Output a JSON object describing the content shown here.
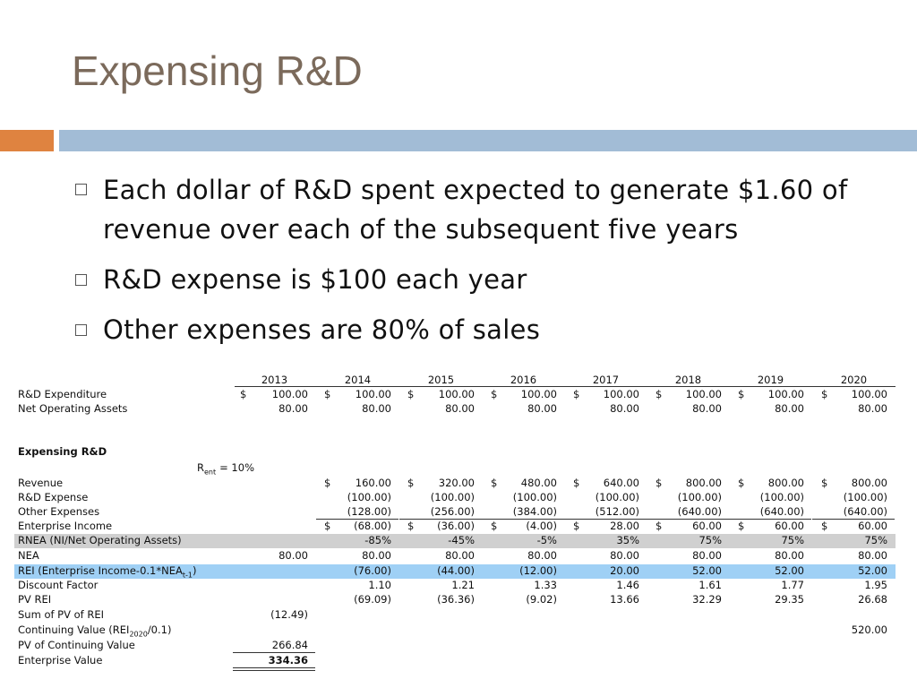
{
  "title": "Expensing R&D",
  "bullets": [
    "Each dollar of R&D spent expected to generate $1.60 of revenue over each of the subsequent five years",
    "R&D expense is $100 each year",
    "Other expenses are 80% of sales"
  ],
  "table": {
    "years": [
      "2013",
      "2014",
      "2015",
      "2016",
      "2017",
      "2018",
      "2019",
      "2020"
    ],
    "rent_note": {
      "text": "R",
      "sub": "ent",
      "after": "= 10%"
    },
    "rows": [
      {
        "label": "R&D Expenditure",
        "currency": [
          "$",
          "$",
          "$",
          "$",
          "$",
          "$",
          "$",
          "$"
        ],
        "cells": [
          "100.00",
          "100.00",
          "100.00",
          "100.00",
          "100.00",
          "100.00",
          "100.00",
          "100.00"
        ]
      },
      {
        "label": "Net Operating Assets",
        "cells": [
          "80.00",
          "80.00",
          "80.00",
          "80.00",
          "80.00",
          "80.00",
          "80.00",
          "80.00"
        ]
      },
      {
        "label": "Expensing R&D",
        "style": "bold"
      },
      {
        "label": "Revenue",
        "currency": [
          null,
          "$",
          "$",
          "$",
          "$",
          "$",
          "$",
          "$"
        ],
        "cells": [
          null,
          "160.00",
          "320.00",
          "480.00",
          "640.00",
          "800.00",
          "800.00",
          "800.00"
        ]
      },
      {
        "label": "R&D Expense",
        "cells": [
          null,
          "(100.00)",
          "(100.00)",
          "(100.00)",
          "(100.00)",
          "(100.00)",
          "(100.00)",
          "(100.00)"
        ]
      },
      {
        "label": "Other Expenses",
        "rule": "below",
        "cells": [
          null,
          "(128.00)",
          "(256.00)",
          "(384.00)",
          "(512.00)",
          "(640.00)",
          "(640.00)",
          "(640.00)"
        ]
      },
      {
        "label": "Enterprise Income",
        "currency": [
          null,
          "$",
          "$",
          "$",
          "$",
          "$",
          "$",
          "$"
        ],
        "cells": [
          null,
          "(68.00)",
          "(36.00)",
          "(4.00)",
          "28.00",
          "60.00",
          "60.00",
          "60.00"
        ]
      },
      {
        "label": "RNEA (NI/Net Operating Assets)",
        "band": "#d0d0d0",
        "cells": [
          null,
          "-85%",
          "-45%",
          "-5%",
          "35%",
          "75%",
          "75%",
          "75%"
        ]
      },
      {
        "label": "NEA",
        "cells": [
          "80.00",
          "80.00",
          "80.00",
          "80.00",
          "80.00",
          "80.00",
          "80.00",
          "80.00"
        ]
      },
      {
        "label": "REI (Enterprise Income-0.1*NEA",
        "label_sub": "t-1",
        "label_end": ")",
        "band": "#9fd0f5",
        "cells": [
          null,
          "(76.00)",
          "(44.00)",
          "(12.00)",
          "20.00",
          "52.00",
          "52.00",
          "52.00"
        ]
      },
      {
        "label": "Discount Factor",
        "cells": [
          null,
          "1.10",
          "1.21",
          "1.33",
          "1.46",
          "1.61",
          "1.77",
          "1.95"
        ]
      },
      {
        "label": "PV REI",
        "cells": [
          null,
          "(69.09)",
          "(36.36)",
          "(9.02)",
          "13.66",
          "32.29",
          "29.35",
          "26.68"
        ]
      },
      {
        "label": "Sum of PV of REI",
        "cells": [
          "(12.49)",
          null,
          null,
          null,
          null,
          null,
          null,
          null
        ]
      },
      {
        "label": "Continuing Value (REI",
        "label_sub": "2020",
        "label_end": "/0.1)",
        "cells": [
          null,
          null,
          null,
          null,
          null,
          null,
          null,
          "520.00"
        ]
      },
      {
        "label": "PV of Continuing Value",
        "rule": "below",
        "cells": [
          "266.84",
          null,
          null,
          null,
          null,
          null,
          null,
          null
        ]
      },
      {
        "label": "Enterprise Value",
        "rule": "double",
        "style": "bold-value",
        "cells": [
          "334.36",
          null,
          null,
          null,
          null,
          null,
          null,
          null
        ]
      }
    ]
  }
}
